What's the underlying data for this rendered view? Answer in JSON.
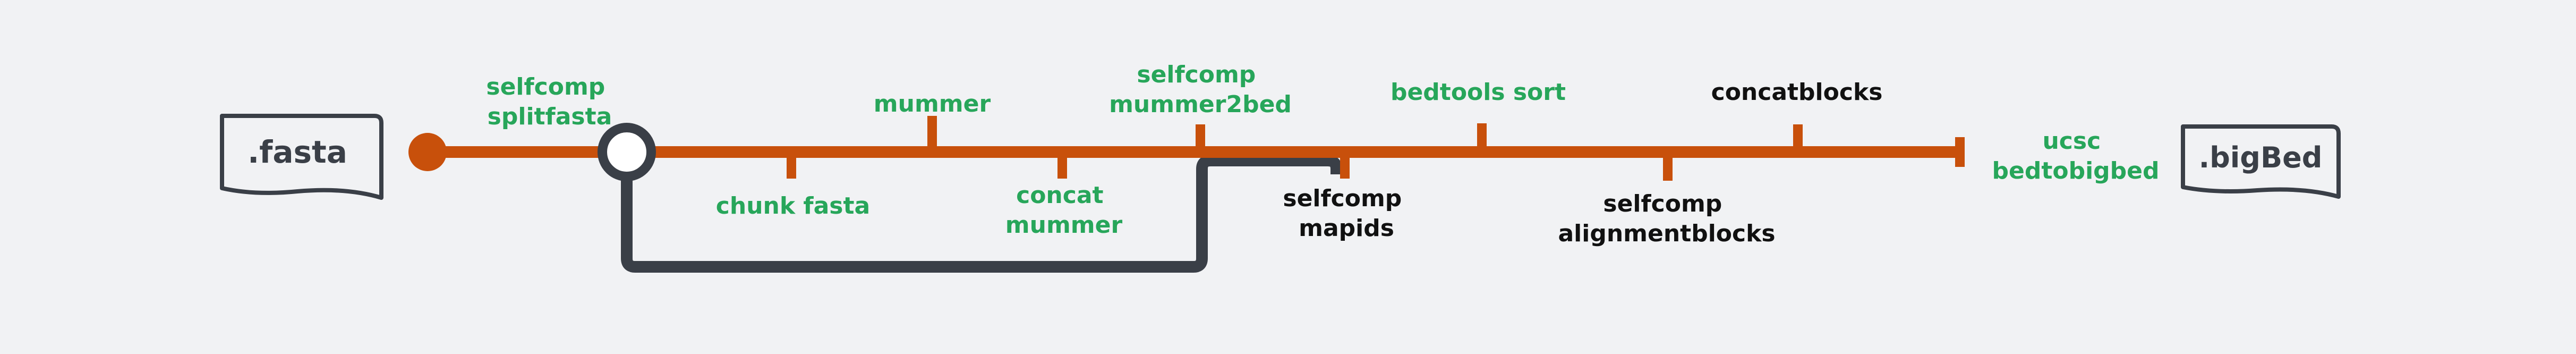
{
  "colors": {
    "background": "#f1f2f4",
    "track": "#c8500b",
    "label_green": "#27a65a",
    "label_dark": "#111111",
    "branch": "#3a3f47",
    "file_stroke": "#3a3f47",
    "file_fill": "#f1f2f4",
    "hub_fill": "#ffffff"
  },
  "input_file": {
    "label": ".fasta"
  },
  "output_file": {
    "label": ".bigBed"
  },
  "steps": [
    {
      "id": "splitfasta",
      "lines": [
        "selfcomp",
        "splitfasta"
      ],
      "tone": "green"
    },
    {
      "id": "chunk-fasta",
      "lines": [
        "chunk fasta"
      ],
      "tone": "green"
    },
    {
      "id": "mummer",
      "lines": [
        "mummer"
      ],
      "tone": "green"
    },
    {
      "id": "concat-mummer",
      "lines": [
        "concat",
        "mummer"
      ],
      "tone": "green"
    },
    {
      "id": "mummer2bed",
      "lines": [
        "selfcomp",
        "mummer2bed"
      ],
      "tone": "green"
    },
    {
      "id": "mapids",
      "lines": [
        "selfcomp",
        "mapids"
      ],
      "tone": "dark"
    },
    {
      "id": "bedtools-sort",
      "lines": [
        "bedtools sort"
      ],
      "tone": "green"
    },
    {
      "id": "alignmentblocks",
      "lines": [
        "selfcomp",
        "alignmentblocks"
      ],
      "tone": "dark"
    },
    {
      "id": "concatblocks",
      "lines": [
        "concatblocks"
      ],
      "tone": "dark"
    },
    {
      "id": "bedtobigbed",
      "lines": [
        "ucsc",
        "bedtobigbed"
      ],
      "tone": "green"
    }
  ]
}
